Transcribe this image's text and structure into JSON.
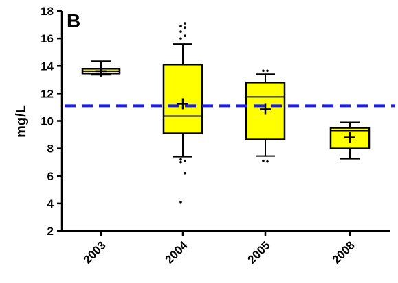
{
  "chart_data": {
    "type": "box",
    "panel_label": "B",
    "title": "",
    "xlabel": "",
    "ylabel": "mg/L",
    "ylim": [
      2,
      18
    ],
    "yticks": [
      "2",
      "4",
      "6",
      "8",
      "10",
      "12",
      "14",
      "16",
      "18"
    ],
    "categories": [
      "2003",
      "2004",
      "2005",
      "2008"
    ],
    "boxes": [
      {
        "category": "2003",
        "whisker_low": 13.35,
        "q1": 13.45,
        "median": 13.62,
        "q3": 13.8,
        "whisker_high": 14.35,
        "mean": 13.62,
        "outliers": []
      },
      {
        "category": "2004",
        "whisker_low": 7.4,
        "q1": 9.1,
        "median": 10.35,
        "q3": 14.1,
        "whisker_high": 15.6,
        "mean": 11.25,
        "outliers": [
          16.0,
          16.2,
          16.5,
          16.8,
          16.9,
          17.1,
          7.0,
          7.1,
          7.2,
          6.2,
          4.1
        ]
      },
      {
        "category": "2005",
        "whisker_low": 7.45,
        "q1": 8.65,
        "median": 11.75,
        "q3": 12.8,
        "whisker_high": 13.4,
        "mean": 10.85,
        "outliers": [
          13.65,
          13.65,
          7.1,
          7.05
        ]
      },
      {
        "category": "2008",
        "whisker_low": 7.25,
        "q1": 8.0,
        "median": 9.3,
        "q3": 9.5,
        "whisker_high": 9.9,
        "mean": 8.8,
        "outliers": []
      }
    ],
    "reference_line": {
      "value": 11.1,
      "style": "dashed"
    },
    "colors": {
      "box_fill": "#ffff00",
      "reference_line": "#1a1aff",
      "stroke": "#000000"
    },
    "grid": false,
    "legend": "none"
  }
}
